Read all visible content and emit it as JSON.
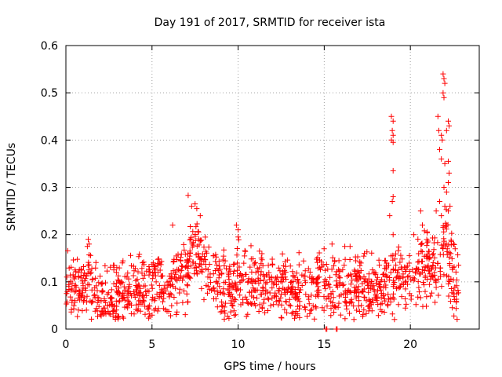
{
  "chart_data": {
    "type": "scatter",
    "title": "Day 191 of 2017, SRMTID for receiver ista",
    "xlabel": "GPS time / hours",
    "ylabel": "SRMTID / TECUs",
    "xlim": [
      0,
      24
    ],
    "ylim": [
      0,
      0.6
    ],
    "xticks": [
      0,
      5,
      10,
      15,
      20
    ],
    "xtick_labels": [
      "0",
      "5",
      "10",
      "15",
      "20"
    ],
    "yticks": [
      0,
      0.1,
      0.2,
      0.3,
      0.4,
      0.5,
      0.6
    ],
    "ytick_labels": [
      "0",
      "0.1",
      "0.2",
      "0.3",
      "0.4",
      "0.5",
      "0.6"
    ],
    "grid": true,
    "marker": "+",
    "series": [
      {
        "name": "SRMTID",
        "color": "#ff0000",
        "baseline_profile": [
          [
            0.0,
            0.085
          ],
          [
            1.0,
            0.085
          ],
          [
            1.3,
            0.12
          ],
          [
            1.6,
            0.085
          ],
          [
            2.0,
            0.065
          ],
          [
            3.0,
            0.07
          ],
          [
            4.0,
            0.085
          ],
          [
            5.0,
            0.095
          ],
          [
            6.0,
            0.09
          ],
          [
            7.0,
            0.12
          ],
          [
            7.5,
            0.17
          ],
          [
            8.0,
            0.14
          ],
          [
            9.0,
            0.085
          ],
          [
            9.8,
            0.085
          ],
          [
            10.0,
            0.12
          ],
          [
            10.5,
            0.1
          ],
          [
            12.0,
            0.095
          ],
          [
            13.0,
            0.09
          ],
          [
            14.0,
            0.085
          ],
          [
            15.0,
            0.09
          ],
          [
            16.0,
            0.095
          ],
          [
            17.0,
            0.085
          ],
          [
            18.0,
            0.09
          ],
          [
            19.0,
            0.1
          ],
          [
            20.0,
            0.11
          ],
          [
            21.0,
            0.14
          ],
          [
            21.7,
            0.12
          ],
          [
            22.0,
            0.2
          ],
          [
            22.5,
            0.1
          ],
          [
            22.8,
            0.08
          ]
        ],
        "spread": 0.035,
        "n_points": 1400,
        "seed": 191,
        "points": [
          [
            1.3,
            0.19
          ],
          [
            1.35,
            0.18
          ],
          [
            1.25,
            0.175
          ],
          [
            7.1,
            0.283
          ],
          [
            7.3,
            0.26
          ],
          [
            7.5,
            0.265
          ],
          [
            7.6,
            0.255
          ],
          [
            7.8,
            0.24
          ],
          [
            6.2,
            0.22
          ],
          [
            9.9,
            0.22
          ],
          [
            10.0,
            0.21
          ],
          [
            10.0,
            0.195
          ],
          [
            18.9,
            0.45
          ],
          [
            19.0,
            0.44
          ],
          [
            18.95,
            0.42
          ],
          [
            19.0,
            0.41
          ],
          [
            18.9,
            0.4
          ],
          [
            19.0,
            0.395
          ],
          [
            19.0,
            0.335
          ],
          [
            19.0,
            0.28
          ],
          [
            18.95,
            0.27
          ],
          [
            18.8,
            0.24
          ],
          [
            19.0,
            0.2
          ],
          [
            21.6,
            0.45
          ],
          [
            21.65,
            0.42
          ],
          [
            21.9,
            0.54
          ],
          [
            21.95,
            0.53
          ],
          [
            22.0,
            0.52
          ],
          [
            21.9,
            0.5
          ],
          [
            21.95,
            0.49
          ],
          [
            22.2,
            0.44
          ],
          [
            22.25,
            0.43
          ],
          [
            22.1,
            0.42
          ],
          [
            21.8,
            0.41
          ],
          [
            21.85,
            0.4
          ],
          [
            21.7,
            0.38
          ],
          [
            21.8,
            0.36
          ],
          [
            22.0,
            0.35
          ],
          [
            22.2,
            0.355
          ],
          [
            22.25,
            0.33
          ],
          [
            22.2,
            0.31
          ],
          [
            21.95,
            0.3
          ],
          [
            22.1,
            0.29
          ],
          [
            21.7,
            0.27
          ],
          [
            22.0,
            0.26
          ],
          [
            22.3,
            0.26
          ],
          [
            22.2,
            0.25
          ],
          [
            21.8,
            0.24
          ],
          [
            21.5,
            0.25
          ],
          [
            20.6,
            0.25
          ],
          [
            22.1,
            0.22
          ],
          [
            21.9,
            0.215
          ],
          [
            22.5,
            0.18
          ],
          [
            22.6,
            0.17
          ],
          [
            20.7,
            0.22
          ],
          [
            20.2,
            0.2
          ],
          [
            15.1,
            0.0
          ],
          [
            15.15,
            0.0
          ],
          [
            15.7,
            0.0
          ],
          [
            15.75,
            0.0
          ],
          [
            15.5,
            0.05
          ],
          [
            15.6,
            0.048
          ],
          [
            15.45,
            0.18
          ],
          [
            16.5,
            0.175
          ]
        ]
      }
    ]
  }
}
